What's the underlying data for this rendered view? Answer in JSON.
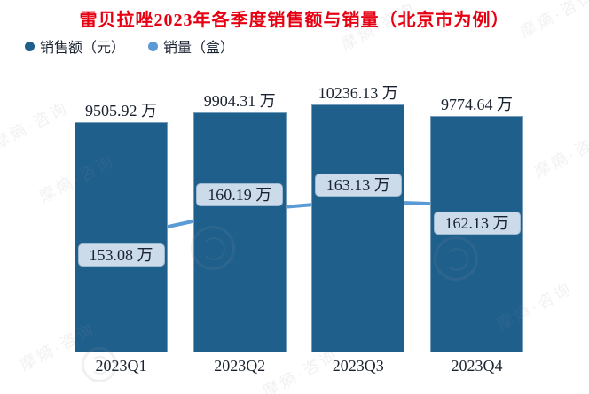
{
  "title": {
    "text": "雷贝拉唑2023年各季度销售额与销量（北京市为例）",
    "color": "#e60012"
  },
  "legend": {
    "items": [
      {
        "label": "销售额（元）",
        "color": "#1F5F8C"
      },
      {
        "label": "销量（盒）",
        "color": "#5B9BD5"
      }
    ]
  },
  "watermark": {
    "text": "摩熵·咨询"
  },
  "chart_data": {
    "type": "bar",
    "combo": "bar + line, dual implicit axes, axes and gridlines hidden",
    "title": "雷贝拉唑2023年各季度销售额与销量（北京市为例）",
    "categories": [
      "2023Q1",
      "2023Q2",
      "2023Q3",
      "2023Q4"
    ],
    "series": [
      {
        "name": "销售额（元）",
        "chart": "bar",
        "unit": "万",
        "values": [
          9505.92,
          9904.31,
          10236.13,
          9774.64
        ],
        "labels": [
          "9505.92 万",
          "9904.31 万",
          "10236.13 万",
          "9774.64 万"
        ],
        "color": "#1F5F8C",
        "label_style": "plain text above bar"
      },
      {
        "name": "销量（盒）",
        "chart": "line",
        "unit": "万",
        "values": [
          153.08,
          160.19,
          163.13,
          162.13
        ],
        "labels": [
          "153.08 万",
          "160.19 万",
          "163.13 万",
          "162.13 万"
        ],
        "color": "#5B9BD5",
        "label_style": "rounded box, light blue fill",
        "label_position": [
          "below",
          "above",
          "above",
          "below"
        ]
      }
    ],
    "xlabel": "",
    "ylabel": "",
    "ylim_left": [
      0,
      10800
    ],
    "grid": false,
    "legend_position": "top-left"
  }
}
